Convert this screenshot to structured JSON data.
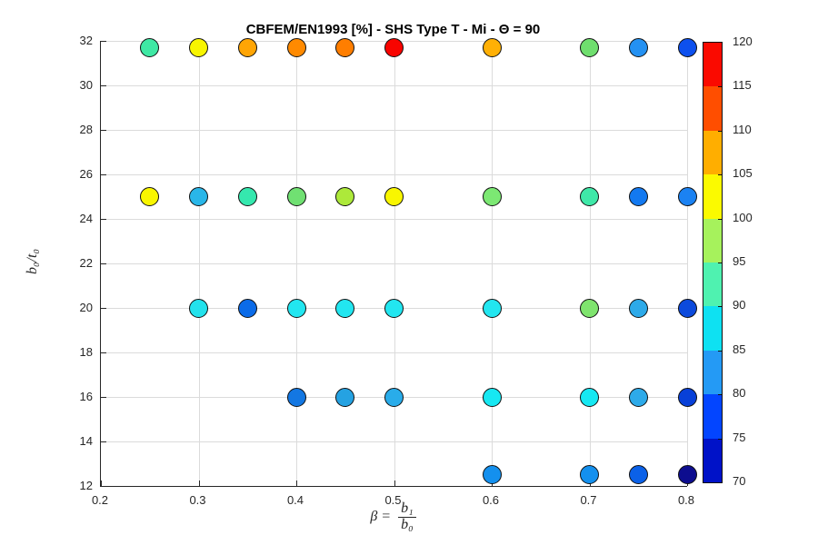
{
  "title": "CBFEM/EN1993 [%] - SHS Type T - Mi - Θ = 90",
  "xlabel": {
    "prefix": "β =",
    "numerator": "b₁",
    "denominator": "b₀"
  },
  "ylabel": "b₀/t₀",
  "chart_data": {
    "type": "scatter",
    "title": "CBFEM/EN1993 [%] - SHS Type T - Mi - Θ = 90",
    "xlabel": "beta = b1/b0",
    "ylabel": "b0/t0",
    "xlim": [
      0.2,
      0.8
    ],
    "ylim": [
      12,
      32
    ],
    "x_ticks": [
      0.2,
      0.3,
      0.4,
      0.5,
      0.6,
      0.7,
      0.8
    ],
    "x_tick_labels": [
      "0.2",
      "0.3",
      "0.4",
      "0.5",
      "0.6",
      "0.7",
      "0.8"
    ],
    "y_ticks": [
      12,
      14,
      16,
      18,
      20,
      22,
      24,
      26,
      28,
      30,
      32
    ],
    "y_tick_labels": [
      "12",
      "14",
      "16",
      "18",
      "20",
      "22",
      "24",
      "26",
      "28",
      "30",
      "32"
    ],
    "grid": true,
    "colorbar": {
      "min": 70,
      "max": 120,
      "tick_labels": [
        "70",
        "75",
        "80",
        "85",
        "90",
        "95",
        "100",
        "105",
        "110",
        "115",
        "120"
      ],
      "ticks": [
        70,
        75,
        80,
        85,
        90,
        95,
        100,
        105,
        110,
        115,
        120
      ],
      "segment_colors_bottom_to_top": [
        "#0012C8",
        "#0345FF",
        "#249AF5",
        "#0ee1f2",
        "#4FF2B0",
        "#A6F25C",
        "#FBFA00",
        "#FFAE00",
        "#FF4E00",
        "#FA0A00"
      ]
    },
    "points": [
      {
        "x": 0.25,
        "y": 31.7,
        "value": 92,
        "color": "#3FE8A4"
      },
      {
        "x": 0.3,
        "y": 31.7,
        "value": 101,
        "color": "#F8F500"
      },
      {
        "x": 0.35,
        "y": 31.7,
        "value": 106,
        "color": "#FFA505"
      },
      {
        "x": 0.4,
        "y": 31.7,
        "value": 108,
        "color": "#FF8A00"
      },
      {
        "x": 0.45,
        "y": 31.7,
        "value": 108,
        "color": "#FF7E00"
      },
      {
        "x": 0.5,
        "y": 31.7,
        "value": 117,
        "color": "#F80400"
      },
      {
        "x": 0.6,
        "y": 31.7,
        "value": 105,
        "color": "#FFB005"
      },
      {
        "x": 0.7,
        "y": 31.7,
        "value": 95,
        "color": "#6FDE6E"
      },
      {
        "x": 0.75,
        "y": 31.7,
        "value": 83,
        "color": "#2491F2"
      },
      {
        "x": 0.8,
        "y": 31.7,
        "value": 78,
        "color": "#0D50EE"
      },
      {
        "x": 0.25,
        "y": 25,
        "value": 100,
        "color": "#F9F600"
      },
      {
        "x": 0.3,
        "y": 25,
        "value": 86,
        "color": "#29B6E8"
      },
      {
        "x": 0.35,
        "y": 25,
        "value": 91,
        "color": "#35E8AE"
      },
      {
        "x": 0.4,
        "y": 25,
        "value": 94,
        "color": "#70E072"
      },
      {
        "x": 0.45,
        "y": 25,
        "value": 98,
        "color": "#ADE93A"
      },
      {
        "x": 0.5,
        "y": 25,
        "value": 100,
        "color": "#F9F600"
      },
      {
        "x": 0.6,
        "y": 25,
        "value": 95,
        "color": "#7CE873"
      },
      {
        "x": 0.7,
        "y": 25,
        "value": 91,
        "color": "#3FE8A8"
      },
      {
        "x": 0.75,
        "y": 25,
        "value": 81,
        "color": "#1379F0"
      },
      {
        "x": 0.8,
        "y": 25,
        "value": 82,
        "color": "#1B82F2"
      },
      {
        "x": 0.3,
        "y": 20,
        "value": 88,
        "color": "#23E2EC"
      },
      {
        "x": 0.35,
        "y": 20,
        "value": 80,
        "color": "#0B6BE8"
      },
      {
        "x": 0.4,
        "y": 20,
        "value": 89,
        "color": "#22E6F0"
      },
      {
        "x": 0.45,
        "y": 20,
        "value": 89,
        "color": "#22E6F0"
      },
      {
        "x": 0.5,
        "y": 20,
        "value": 89,
        "color": "#22E6F0"
      },
      {
        "x": 0.6,
        "y": 20,
        "value": 89,
        "color": "#22E6F0"
      },
      {
        "x": 0.7,
        "y": 20,
        "value": 95,
        "color": "#7FE46E"
      },
      {
        "x": 0.75,
        "y": 20,
        "value": 85,
        "color": "#2DAAE9"
      },
      {
        "x": 0.8,
        "y": 20,
        "value": 77,
        "color": "#0C4ADC"
      },
      {
        "x": 0.4,
        "y": 16,
        "value": 81,
        "color": "#1377E2"
      },
      {
        "x": 0.45,
        "y": 16,
        "value": 84,
        "color": "#25A2E2"
      },
      {
        "x": 0.5,
        "y": 16,
        "value": 85,
        "color": "#29ACEA"
      },
      {
        "x": 0.6,
        "y": 16,
        "value": 89,
        "color": "#16E8F2"
      },
      {
        "x": 0.7,
        "y": 16,
        "value": 89,
        "color": "#16E8F2"
      },
      {
        "x": 0.75,
        "y": 16,
        "value": 85,
        "color": "#2DAAE9"
      },
      {
        "x": 0.8,
        "y": 16,
        "value": 76,
        "color": "#0840D8"
      },
      {
        "x": 0.6,
        "y": 12.5,
        "value": 83,
        "color": "#1490EE"
      },
      {
        "x": 0.7,
        "y": 12.5,
        "value": 83,
        "color": "#1490EE"
      },
      {
        "x": 0.75,
        "y": 12.5,
        "value": 79,
        "color": "#0B61E8"
      },
      {
        "x": 0.8,
        "y": 12.5,
        "value": 70,
        "color": "#0D0D8F"
      }
    ]
  }
}
